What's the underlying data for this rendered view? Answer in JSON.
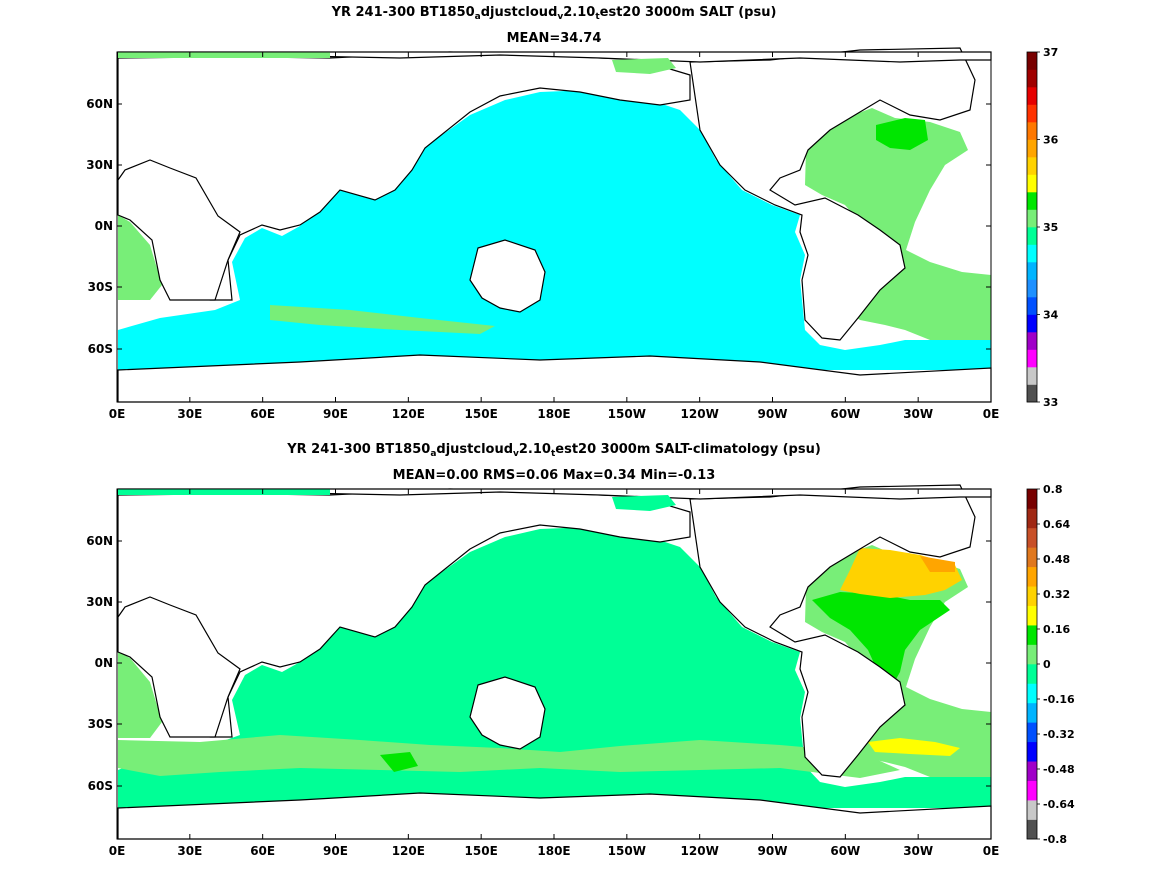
{
  "panels": [
    {
      "id": "top",
      "title_parts": [
        "YR 241-300 BT1850",
        "a",
        "djustcloud",
        "v",
        "2.10",
        "t",
        "est20 3000m SALT (psu)"
      ],
      "subtitle": "MEAN=34.74",
      "x_ticks": [
        "0E",
        "30E",
        "60E",
        "90E",
        "120E",
        "150E",
        "180E",
        "150W",
        "120W",
        "90W",
        "60W",
        "30W",
        "0E"
      ],
      "y_ticks": [
        "60N",
        "30N",
        "0N",
        "30S",
        "60S"
      ],
      "colorbar_labels": [
        "37",
        "36",
        "35",
        "34",
        "33"
      ],
      "colorbar_colors": [
        "#505050",
        "#c8c8c8",
        "#ff00ff",
        "#a000c8",
        "#0000ff",
        "#0050ff",
        "#1e90ff",
        "#00b4ff",
        "#00ffff",
        "#00ff96",
        "#78ee78",
        "#00e600",
        "#ffff00",
        "#ffd200",
        "#ffa500",
        "#ff7800",
        "#ff3200",
        "#e60000",
        "#a00000",
        "#780000"
      ],
      "ocean_fill": "#00ffff",
      "atlantic_fill": "#78ee78",
      "accent_fill": "#00e600"
    },
    {
      "id": "bottom",
      "title_parts": [
        "YR 241-300 BT1850",
        "a",
        "djustcloud",
        "v",
        "2.10",
        "t",
        "est20 3000m SALT-climatology (psu)"
      ],
      "subtitle": "MEAN=0.00   RMS=0.06   Max=0.34   Min=-0.13",
      "x_ticks": [
        "0E",
        "30E",
        "60E",
        "90E",
        "120E",
        "150E",
        "180E",
        "150W",
        "120W",
        "90W",
        "60W",
        "30W",
        "0E"
      ],
      "y_ticks": [
        "60N",
        "30N",
        "0N",
        "30S",
        "60S"
      ],
      "colorbar_labels": [
        "0.8",
        "0.64",
        "0.48",
        "0.32",
        "0.16",
        "0",
        "-0.16",
        "-0.32",
        "-0.48",
        "-0.64",
        "-0.8"
      ],
      "colorbar_colors": [
        "#505050",
        "#c8c8c8",
        "#ff00ff",
        "#a000c8",
        "#0000ff",
        "#0050ff",
        "#00b4ff",
        "#00ffff",
        "#00ff96",
        "#78ee78",
        "#00e600",
        "#ffff00",
        "#ffd200",
        "#ffa500",
        "#e0781e",
        "#c85028",
        "#a02814",
        "#780000"
      ],
      "ocean_fill": "#00ff96",
      "atlantic_fill": "#78ee78",
      "accent_fill": "#00e600"
    }
  ]
}
